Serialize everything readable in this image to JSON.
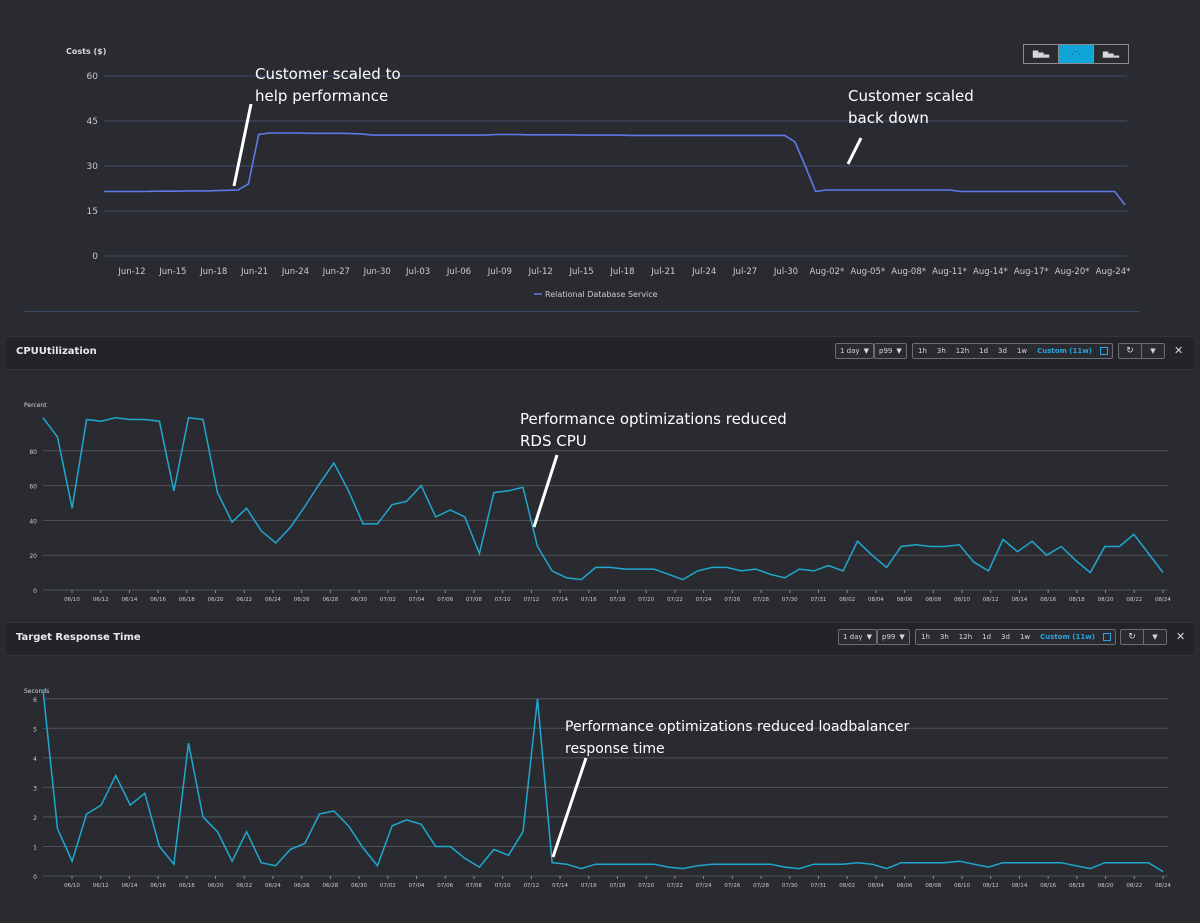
{
  "cost_chart": {
    "ylabel": "Costs ($)",
    "legend": "Relational Database Service",
    "view_icons": [
      "bar-chart-icon",
      "line-chart-icon",
      "stacked-bar-icon"
    ],
    "annotation_1": [
      "Customer scaled to",
      "help performance"
    ],
    "annotation_2": [
      "Customer scaled",
      "back down"
    ]
  },
  "cpu_panel": {
    "title": "CPUUtilization",
    "period": "1 day",
    "statistic": "p99",
    "ranges": [
      "1h",
      "3h",
      "12h",
      "1d",
      "3d",
      "1w",
      "Custom (11w)"
    ],
    "ylabel": "Percent",
    "annotation": [
      "Performance optimizations reduced",
      "RDS CPU"
    ]
  },
  "trt_panel": {
    "title": "Target Response Time",
    "period": "1 day",
    "statistic": "p99",
    "ranges": [
      "1h",
      "3h",
      "12h",
      "1d",
      "3d",
      "1w",
      "Custom (11w)"
    ],
    "ylabel": "Seconds",
    "annotation": [
      "Performance optimizations reduced loadbalancer",
      "response time"
    ]
  },
  "chart_data": [
    {
      "type": "line",
      "ylabel": "Costs ($)",
      "ylim": [
        0,
        60
      ],
      "yticks": [
        0,
        15,
        30,
        45,
        60
      ],
      "x_tick_labels": [
        "Jun-12",
        "Jun-15",
        "Jun-18",
        "Jun-21",
        "Jun-24",
        "Jun-27",
        "Jun-30",
        "Jul-03",
        "Jul-06",
        "Jul-09",
        "Jul-12",
        "Jul-15",
        "Jul-18",
        "Jul-21",
        "Jul-24",
        "Jul-27",
        "Jul-30",
        "Aug-02*",
        "Aug-05*",
        "Aug-08*",
        "Aug-11*",
        "Aug-14*",
        "Aug-17*",
        "Aug-20*",
        "Aug-24*"
      ],
      "series": [
        {
          "name": "Relational Database Service",
          "color": "#5b7be8",
          "values": [
            21.5,
            21.5,
            21.5,
            21.5,
            21.5,
            21.6,
            21.6,
            21.6,
            21.7,
            21.7,
            21.7,
            21.8,
            21.9,
            22,
            24,
            40.5,
            41,
            41,
            41,
            41,
            40.9,
            40.9,
            40.9,
            40.9,
            40.8,
            40.7,
            40.3,
            40.3,
            40.3,
            40.3,
            40.3,
            40.3,
            40.3,
            40.3,
            40.3,
            40.3,
            40.3,
            40.3,
            40.5,
            40.5,
            40.5,
            40.4,
            40.4,
            40.4,
            40.4,
            40.4,
            40.3,
            40.3,
            40.3,
            40.3,
            40.3,
            40.2,
            40.2,
            40.2,
            40.2,
            40.2,
            40.2,
            40.2,
            40.2,
            40.2,
            40.2,
            40.2,
            40.2,
            40.2,
            40.2,
            40.2,
            40.2,
            38,
            30,
            21.5,
            22,
            22,
            22,
            22,
            22,
            22,
            22,
            22,
            22,
            22,
            22,
            22,
            22,
            21.5,
            21.5,
            21.5,
            21.5,
            21.5,
            21.5,
            21.5,
            21.5,
            21.5,
            21.5,
            21.5,
            21.5,
            21.5,
            21.5,
            21.5,
            21.5,
            17
          ]
        }
      ]
    },
    {
      "type": "line",
      "ylabel": "Percent",
      "ylim": [
        0,
        100
      ],
      "yticks": [
        0,
        20,
        40,
        60,
        80
      ],
      "x_tick_labels": [
        "06/10",
        "06/12",
        "06/14",
        "06/16",
        "06/18",
        "06/20",
        "06/22",
        "06/24",
        "06/26",
        "06/28",
        "06/30",
        "07/02",
        "07/04",
        "07/06",
        "07/08",
        "07/10",
        "07/12",
        "07/14",
        "07/16",
        "07/18",
        "07/20",
        "07/22",
        "07/24",
        "07/26",
        "07/28",
        "07/30",
        "07/31",
        "08/02",
        "08/04",
        "08/06",
        "08/08",
        "08/10",
        "08/12",
        "08/14",
        "08/16",
        "08/18",
        "08/20",
        "08/22",
        "08/24"
      ],
      "series": [
        {
          "color": "#1fa8cf",
          "values": [
            99,
            88,
            47,
            98,
            97,
            99,
            98,
            98,
            97,
            57,
            99,
            98,
            56,
            39,
            47,
            34,
            27,
            36,
            48,
            61,
            73,
            57,
            38,
            38,
            49,
            51,
            60,
            42,
            46,
            42,
            21,
            56,
            57,
            59,
            25,
            11,
            7,
            6,
            13,
            13,
            12,
            12,
            12,
            9,
            6,
            11,
            13,
            13,
            11,
            12,
            9,
            7,
            12,
            11,
            14,
            11,
            28,
            20,
            13,
            25,
            26,
            25,
            25,
            26,
            16,
            11,
            29,
            22,
            28,
            20,
            25,
            17,
            10,
            25,
            25,
            32,
            21,
            10
          ]
        }
      ]
    },
    {
      "type": "line",
      "ylabel": "Seconds",
      "ylim": [
        0,
        6.5
      ],
      "yticks": [
        0,
        1,
        2,
        3,
        4,
        5,
        6
      ],
      "x_tick_labels": [
        "06/10",
        "06/12",
        "06/14",
        "06/16",
        "06/18",
        "06/20",
        "06/22",
        "06/24",
        "06/26",
        "06/28",
        "06/30",
        "07/02",
        "07/04",
        "07/06",
        "07/08",
        "07/10",
        "07/12",
        "07/14",
        "07/16",
        "07/18",
        "07/20",
        "07/22",
        "07/24",
        "07/26",
        "07/28",
        "07/30",
        "07/31",
        "08/02",
        "08/04",
        "08/06",
        "08/08",
        "08/10",
        "08/12",
        "08/14",
        "08/16",
        "08/18",
        "08/20",
        "08/22",
        "08/24"
      ],
      "series": [
        {
          "color": "#1fa8cf",
          "values": [
            6.3,
            1.6,
            0.5,
            2.1,
            2.4,
            3.4,
            2.4,
            2.8,
            1.0,
            0.4,
            4.5,
            2.0,
            1.5,
            0.5,
            1.5,
            0.45,
            0.35,
            0.9,
            1.1,
            2.1,
            2.2,
            1.7,
            0.95,
            0.35,
            1.7,
            1.9,
            1.75,
            1.0,
            1.0,
            0.6,
            0.3,
            0.9,
            0.7,
            1.5,
            6.0,
            0.45,
            0.4,
            0.25,
            0.4,
            0.4,
            0.4,
            0.4,
            0.4,
            0.3,
            0.25,
            0.35,
            0.4,
            0.4,
            0.4,
            0.4,
            0.4,
            0.3,
            0.25,
            0.4,
            0.4,
            0.4,
            0.45,
            0.4,
            0.25,
            0.45,
            0.45,
            0.45,
            0.45,
            0.5,
            0.4,
            0.3,
            0.45,
            0.45,
            0.45,
            0.45,
            0.45,
            0.35,
            0.25,
            0.45,
            0.45,
            0.45,
            0.45,
            0.15
          ]
        }
      ]
    }
  ]
}
